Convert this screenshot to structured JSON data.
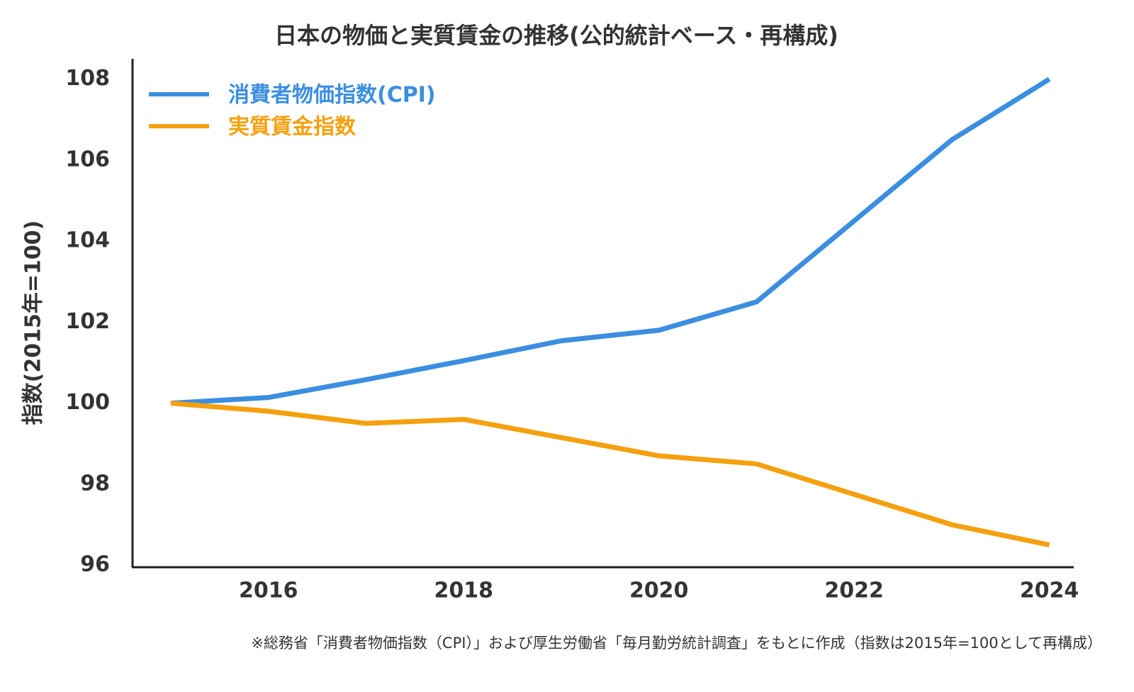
{
  "chart_data": {
    "type": "line",
    "title": "日本の物価と実質賃金の推移(公的統計ベース・再構成)",
    "y_label": "指数(2015年=100)",
    "note": "※総務省「消費者物価指数（CPI）」および厚生労働省「毎月勤労統計調査」をもとに作成（指数は2015年=100として再構成）",
    "x": [
      2015,
      2016,
      2017,
      2018,
      2019,
      2020,
      2021,
      2022,
      2023,
      2024
    ],
    "series": [
      {
        "name": "消費者物価指数(CPI)",
        "color": "#3b8ee0",
        "values": [
          100,
          100.14,
          100.58,
          101.05,
          101.54,
          101.8,
          102.5,
          104.5,
          106.5,
          108
        ]
      },
      {
        "name": "実質賃金指数",
        "color": "#f5a00f",
        "values": [
          100,
          99.8,
          99.5,
          99.6,
          99.15,
          98.7,
          98.5,
          97.75,
          97.0,
          96.5
        ]
      }
    ],
    "xlim": [
      2014.6,
      2024.25
    ],
    "xticks": [
      2016,
      2018,
      2020,
      2022,
      2024
    ],
    "ylim": [
      95.95,
      108.5
    ],
    "yticks": [
      96,
      98,
      100,
      102,
      104,
      106,
      108
    ],
    "legend": "upper left"
  }
}
